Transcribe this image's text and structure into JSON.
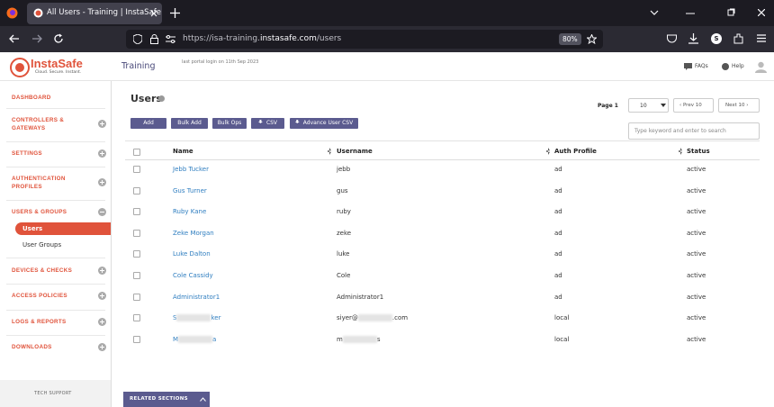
{
  "browser": {
    "tab_title": "All Users - Training | InstaSafe",
    "url_prefix": "https://isa-training.",
    "url_domain": "instasafe.com",
    "url_path": "/users",
    "zoom": "80%",
    "profile": "S"
  },
  "header": {
    "logo": "InstaSafe",
    "tagline": "Cloud. Secure. Instant.",
    "tenant": "Training",
    "last_login": "last portal login on 11th Sep 2023",
    "faqs": "FAQs",
    "help": "Help"
  },
  "sidebar": {
    "items": [
      {
        "label": "DASHBOARD"
      },
      {
        "label": "CONTROLLERS & GATEWAYS",
        "toggle": "plus"
      },
      {
        "label": "SETTINGS",
        "toggle": "plus"
      },
      {
        "label": "AUTHENTICATION PROFILES",
        "toggle": "plus"
      },
      {
        "label": "USERS & GROUPS",
        "toggle": "minus"
      },
      {
        "label": "DEVICES & CHECKS",
        "toggle": "plus"
      },
      {
        "label": "ACCESS POLICIES",
        "toggle": "plus"
      },
      {
        "label": "LOGS & REPORTS",
        "toggle": "plus"
      },
      {
        "label": "DOWNLOADS",
        "toggle": "plus"
      }
    ],
    "sub": [
      "Users",
      "User Groups"
    ],
    "footer": "TECH SUPPORT"
  },
  "page": {
    "title": "Users",
    "buttons": [
      "Add",
      "Bulk Add",
      "Bulk Ops",
      "CSV",
      "Advance User CSV"
    ],
    "page_label": "Page 1",
    "page_size": "10",
    "prev": "Prev 10",
    "next": "Next 10",
    "search_placeholder": "Type keyword and enter to search",
    "related": "RELATED SECTIONS"
  },
  "table": {
    "columns": [
      "Name",
      "Username",
      "Auth Profile",
      "Status"
    ],
    "rows": [
      [
        "Jebb Tucker",
        "jebb",
        "ad",
        "active"
      ],
      [
        "Gus Turner",
        "gus",
        "ad",
        "active"
      ],
      [
        "Ruby Kane",
        "ruby",
        "ad",
        "active"
      ],
      [
        "Zeke Morgan",
        "zeke",
        "ad",
        "active"
      ],
      [
        "Luke Dalton",
        "luke",
        "ad",
        "active"
      ],
      [
        "Cole Cassidy",
        "Cole",
        "ad",
        "active"
      ],
      [
        "Administrator1",
        "Administrator1",
        "ad",
        "active"
      ],
      [
        [
          "S",
          "ker"
        ],
        [
          "siyer@",
          ".com"
        ],
        "local",
        "active"
      ],
      [
        [
          "M",
          "a"
        ],
        [
          "m",
          "s"
        ],
        "local",
        "active"
      ]
    ]
  }
}
